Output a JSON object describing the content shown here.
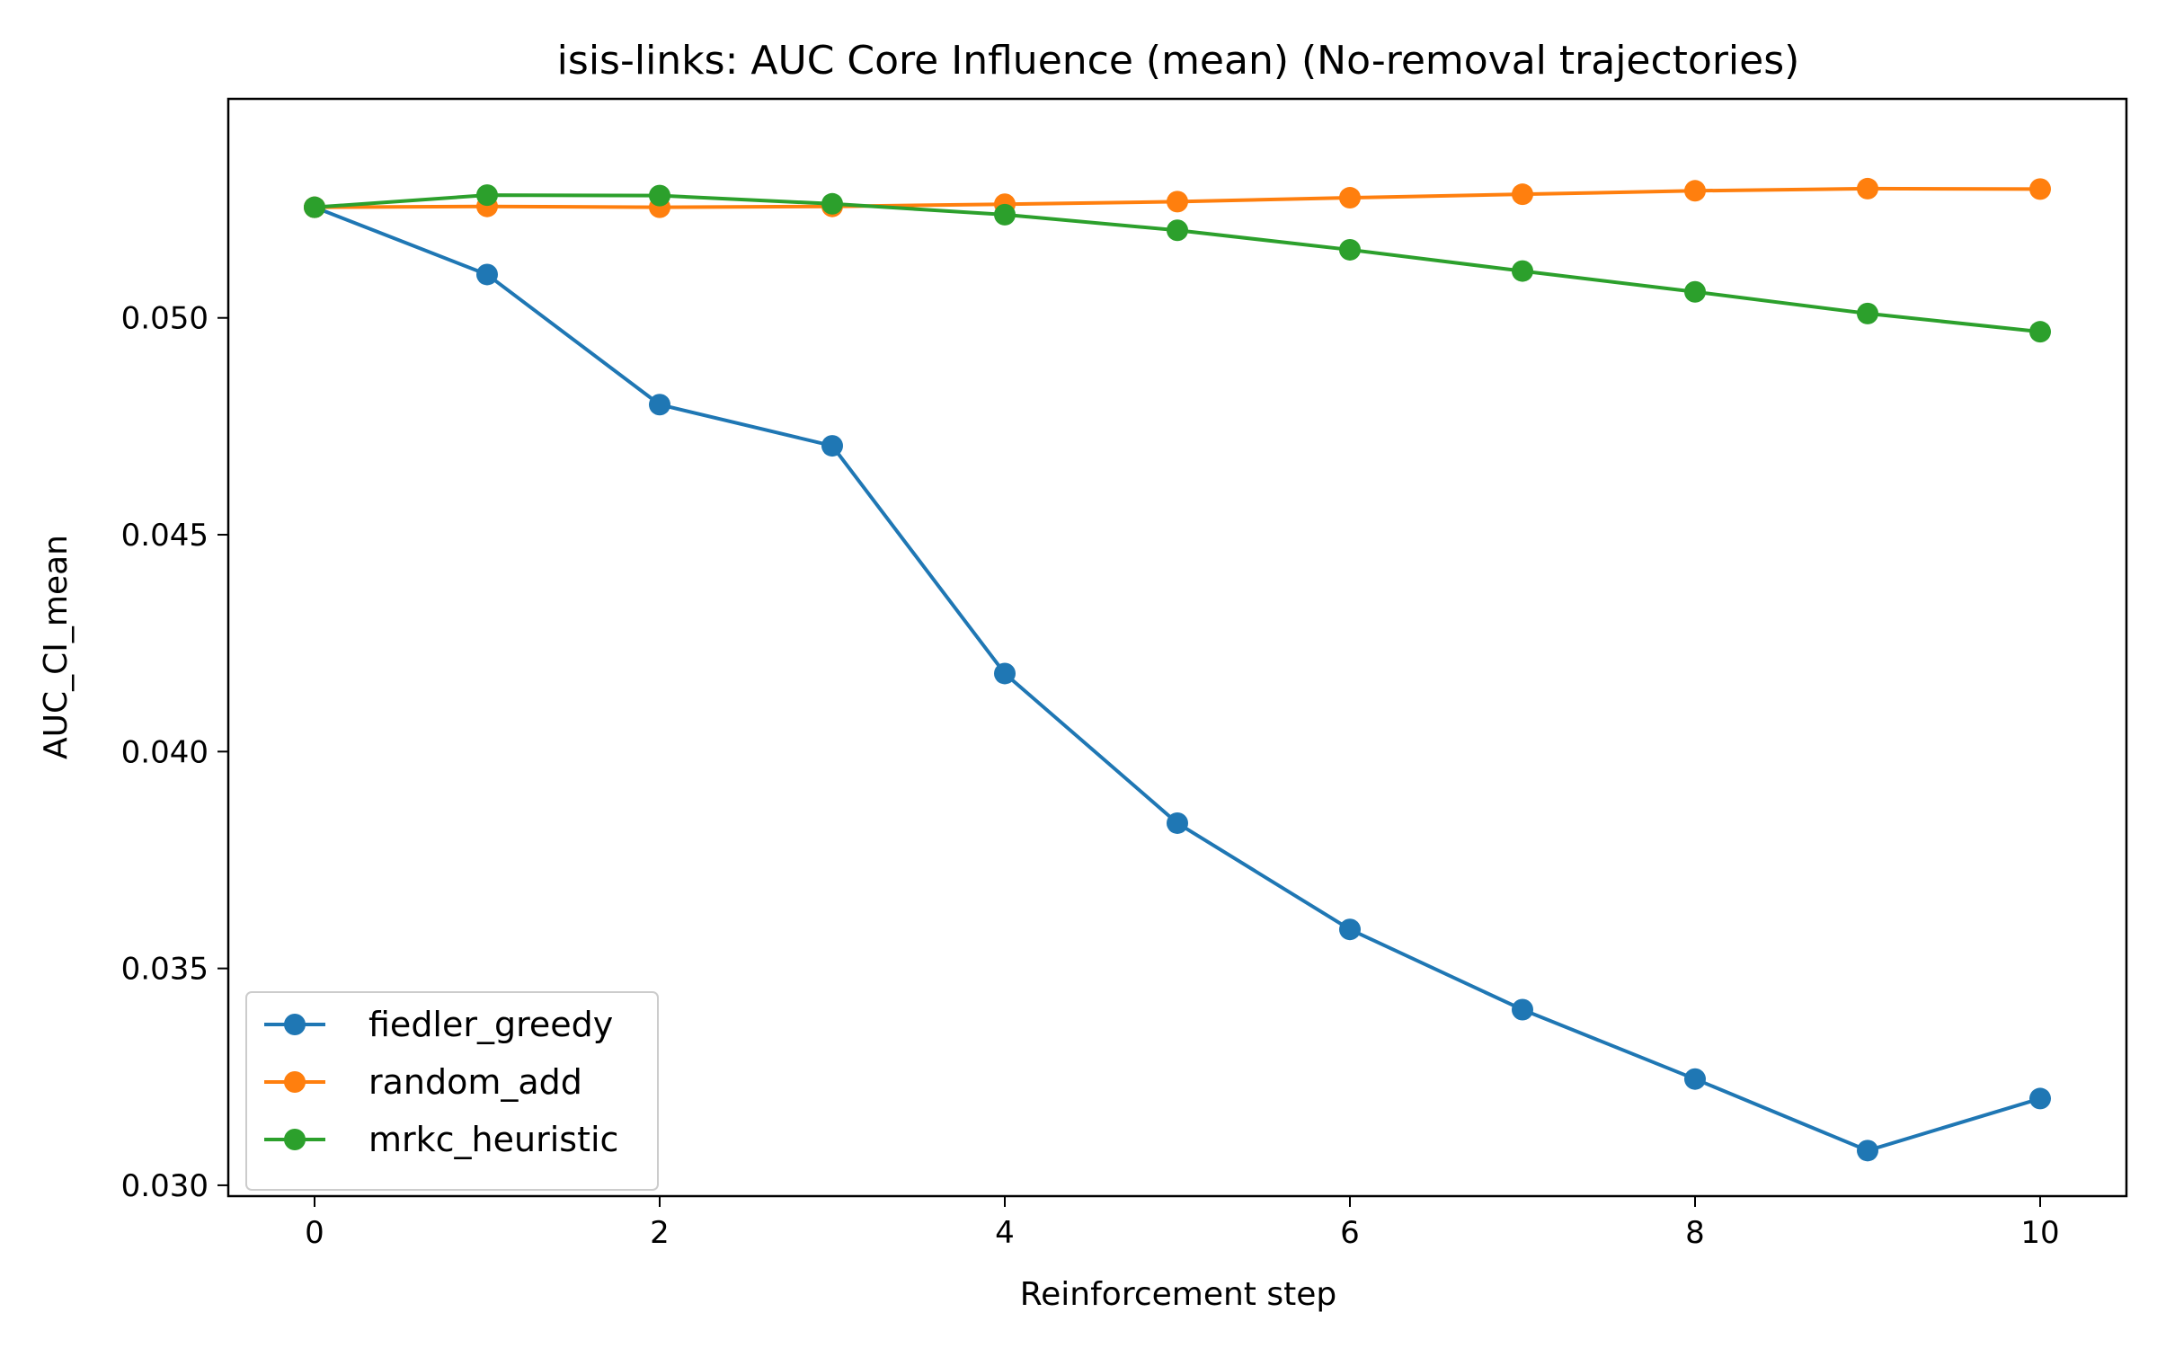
{
  "chart_data": {
    "type": "line",
    "title": "isis-links: AUC Core Influence (mean) (No-removal trajectories)",
    "xlabel": "Reinforcement step",
    "ylabel": "AUC_CI_mean",
    "xlim": [
      -0.5,
      10.5
    ],
    "ylim": [
      0.02975,
      0.05505
    ],
    "xticks": [
      0,
      2,
      4,
      6,
      8,
      10
    ],
    "yticks": [
      0.03,
      0.035,
      0.04,
      0.045,
      0.05
    ],
    "grid": false,
    "legend_position": "lower-left",
    "x": [
      0,
      1,
      2,
      3,
      4,
      5,
      6,
      7,
      8,
      9,
      10
    ],
    "series": [
      {
        "name": "fiedler_greedy",
        "color": "#1f77b4",
        "marker": "circle",
        "values": [
          0.05255,
          0.051,
          0.048,
          0.04705,
          0.0418,
          0.03835,
          0.0359,
          0.03405,
          0.03245,
          0.0308,
          0.032
        ]
      },
      {
        "name": "random_add",
        "color": "#ff7f0e",
        "marker": "circle",
        "values": [
          0.05255,
          0.05257,
          0.05255,
          0.05257,
          0.05262,
          0.05268,
          0.05277,
          0.05285,
          0.05293,
          0.05298,
          0.05297
        ]
      },
      {
        "name": "mrkc_heuristic",
        "color": "#2ca02c",
        "marker": "circle",
        "values": [
          0.05255,
          0.05283,
          0.05282,
          0.05263,
          0.05238,
          0.05202,
          0.05157,
          0.05108,
          0.0506,
          0.0501,
          0.04968
        ]
      }
    ]
  }
}
